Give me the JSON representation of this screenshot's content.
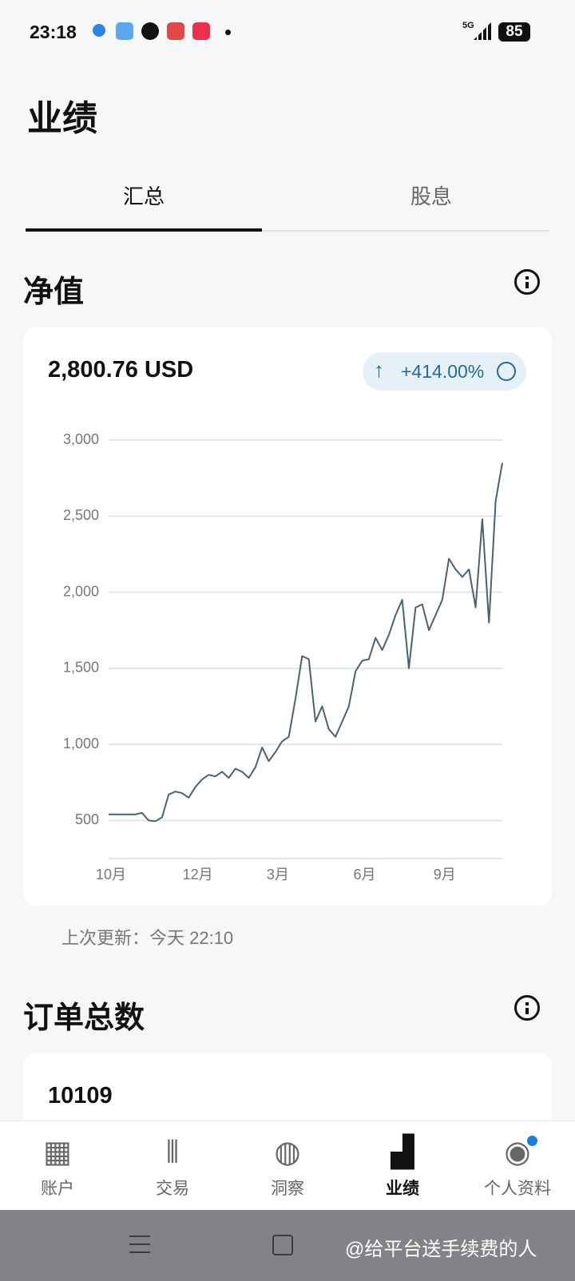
{
  "status_bar": {
    "time": "23:18",
    "network": "5G",
    "battery": "85"
  },
  "header": {
    "title": "业绩"
  },
  "tabs": [
    {
      "label": "汇总",
      "active": true
    },
    {
      "label": "股息",
      "active": false
    }
  ],
  "net_value": {
    "title": "净值",
    "amount": "2,800.76 USD",
    "change": "+414.00%",
    "updated": "上次更新：今天 22:10"
  },
  "chart_data": {
    "type": "line",
    "categories": [
      "10月",
      null,
      null,
      null,
      null,
      null,
      null,
      null,
      null,
      null,
      null,
      null,
      null,
      "12月",
      null,
      null,
      null,
      null,
      null,
      null,
      null,
      null,
      null,
      null,
      null,
      "3月",
      null,
      null,
      null,
      null,
      null,
      null,
      null,
      null,
      null,
      null,
      null,
      null,
      "6月",
      null,
      null,
      null,
      null,
      null,
      null,
      null,
      null,
      null,
      null,
      null,
      "9月",
      null,
      null,
      null,
      null,
      null,
      null,
      null,
      null,
      null
    ],
    "series": [
      {
        "color": "#4a6272",
        "values": [
          540,
          540,
          540,
          540,
          540,
          550,
          500,
          495,
          520,
          670,
          690,
          680,
          650,
          720,
          770,
          800,
          790,
          820,
          780,
          840,
          820,
          780,
          850,
          980,
          890,
          950,
          1020,
          1050,
          1300,
          1580,
          1560,
          1150,
          1250,
          1100,
          1050,
          1150,
          1250,
          1480,
          1550,
          1560,
          1700,
          1620,
          1720,
          1850,
          1950,
          1500,
          1900,
          1920,
          1750,
          1850,
          1950,
          2220,
          2150,
          2100,
          2150,
          1900,
          2480,
          1800,
          2600,
          2850
        ]
      }
    ],
    "ylim": [
      250,
      3000
    ],
    "yticks": [
      500,
      {
        "value": 1000,
        "label": "1,000"
      },
      {
        "value": 1500,
        "label": "1,500"
      },
      {
        "value": 2000,
        "label": "2,000"
      },
      {
        "value": 2500,
        "label": "2,500"
      },
      {
        "value": 3000,
        "label": "3,000"
      }
    ],
    "grid": true
  },
  "orders": {
    "title": "订单总数",
    "count": "10109"
  },
  "nav": [
    {
      "label": "账户",
      "active": false
    },
    {
      "label": "交易",
      "active": false
    },
    {
      "label": "洞察",
      "active": false
    },
    {
      "label": "业绩",
      "active": true
    },
    {
      "label": "个人资料",
      "active": false,
      "badge": true
    }
  ],
  "watermark": "@给平台送手续费的人"
}
